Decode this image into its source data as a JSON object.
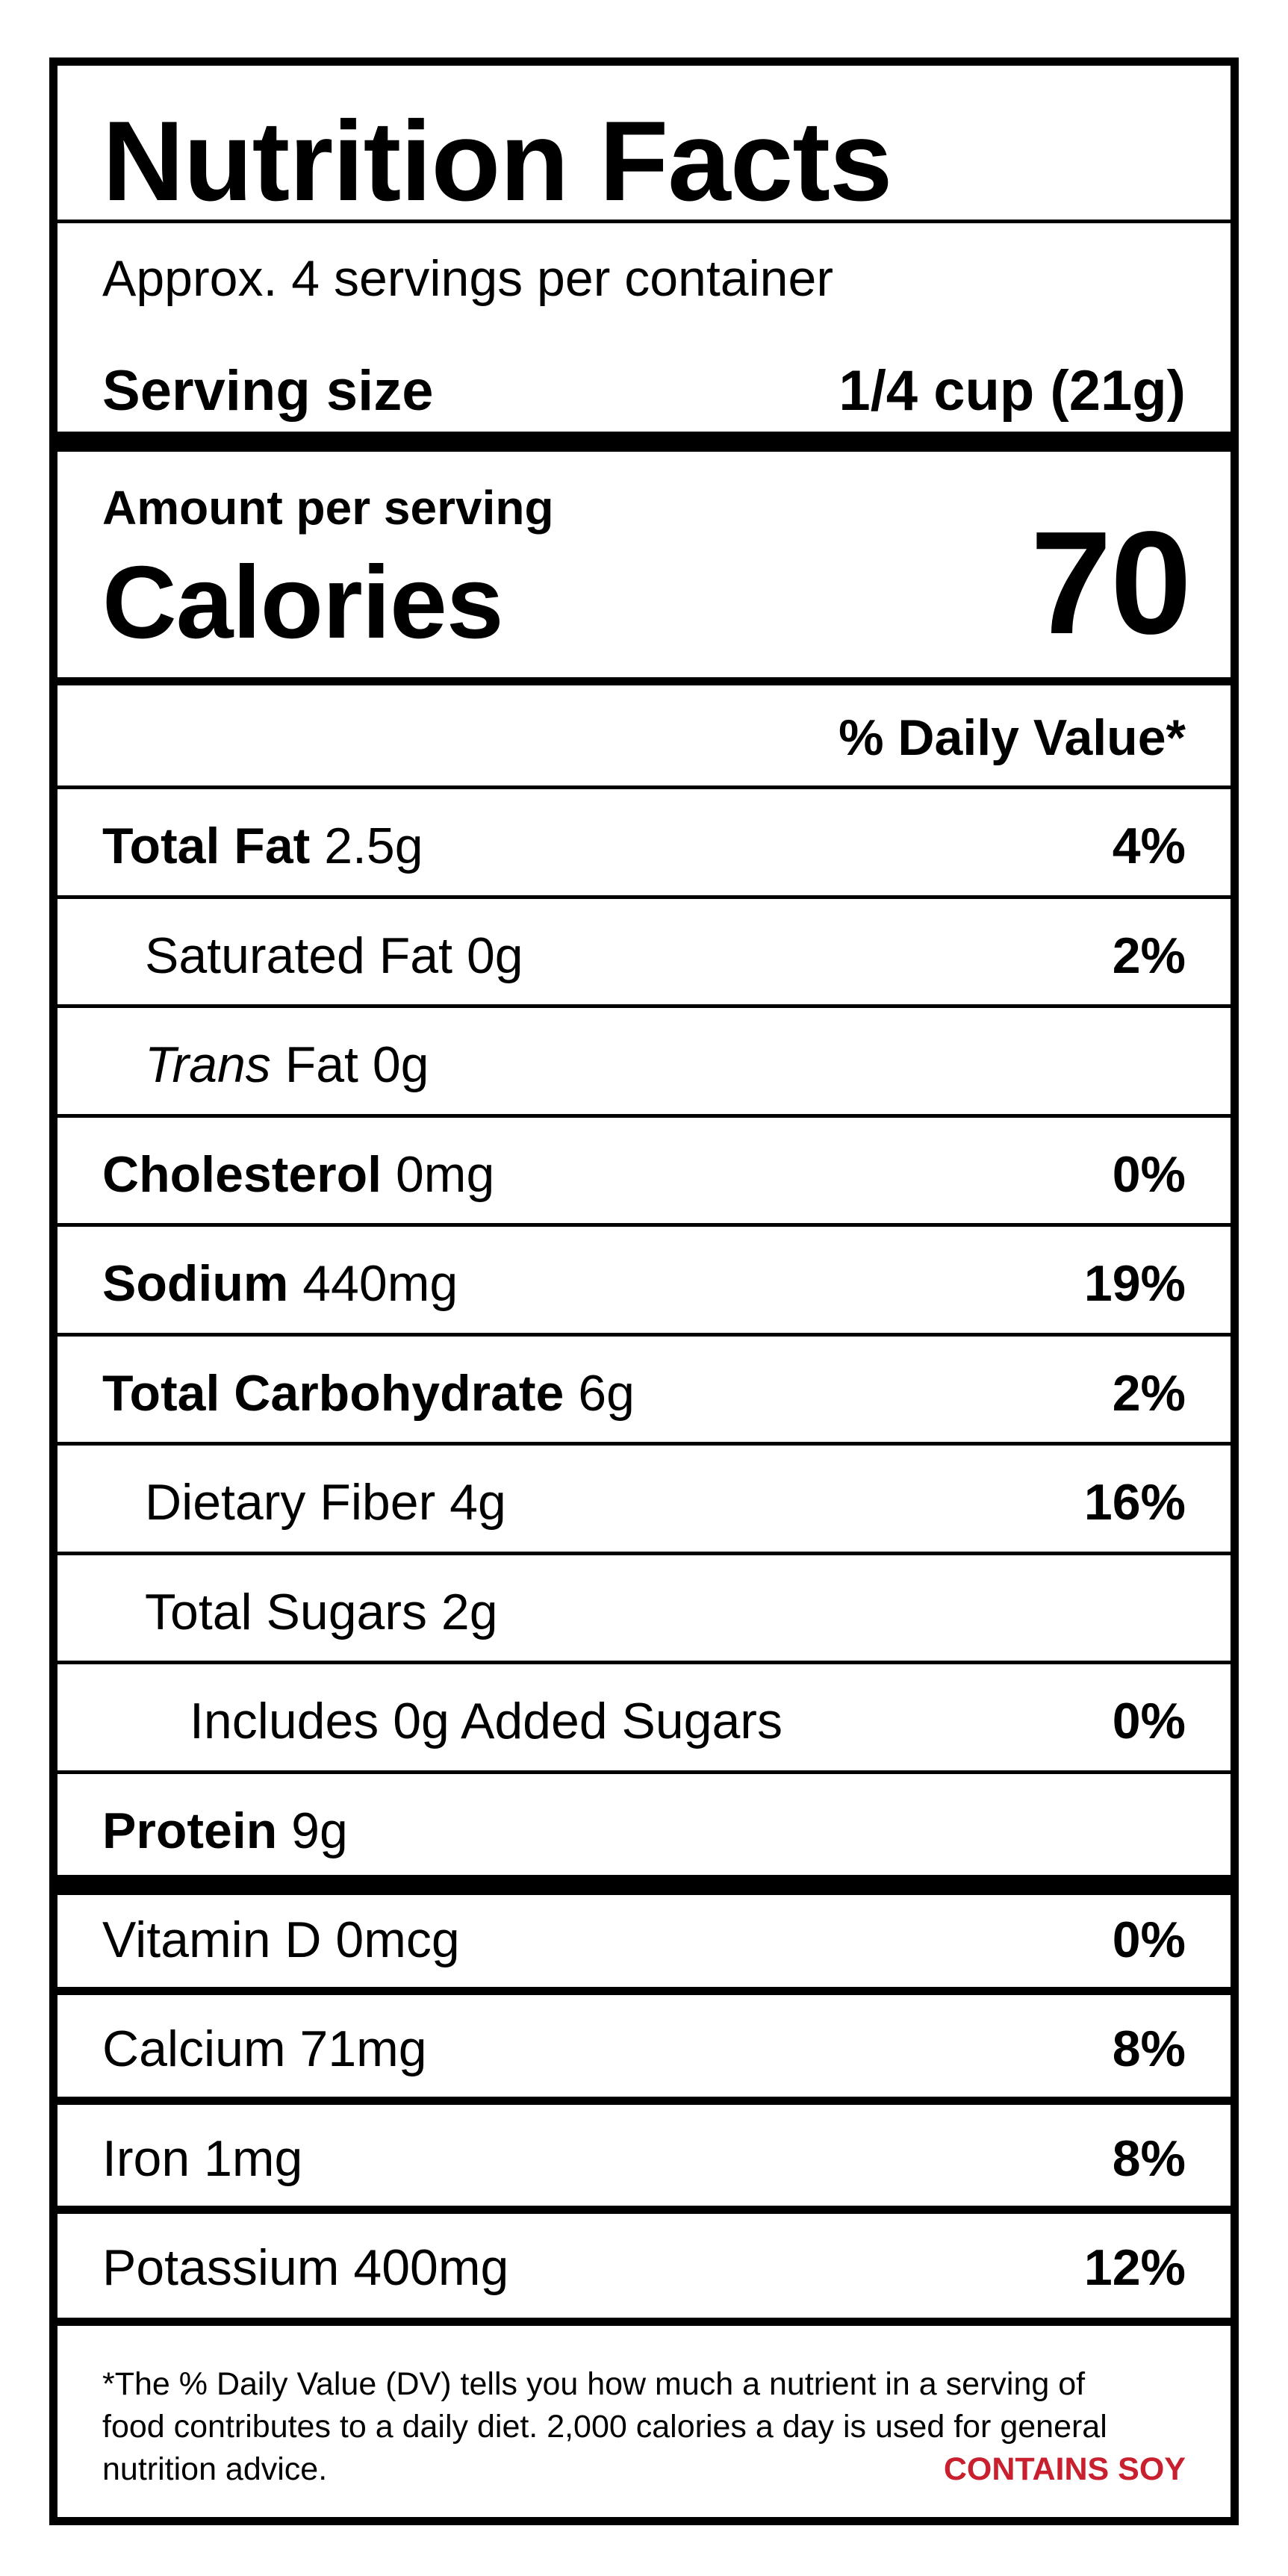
{
  "title": "Nutrition Facts",
  "servings_per_container": "Approx. 4 servings per container",
  "serving_size": {
    "label": "Serving size",
    "value": "1/4 cup (21g)"
  },
  "amount_per_serving": "Amount per serving",
  "calories": {
    "label": "Calories",
    "value": "70"
  },
  "daily_value_header": "% Daily Value*",
  "nutrients": [
    {
      "name": "Total Fat",
      "amount": "2.5g",
      "dv": "4%"
    },
    {
      "name": "Saturated Fat",
      "amount": "0g",
      "dv": "2%"
    },
    {
      "name": "Trans",
      "amount": "Fat 0g",
      "dv": ""
    },
    {
      "name": "Cholesterol",
      "amount": "0mg",
      "dv": "0%"
    },
    {
      "name": "Sodium",
      "amount": "440mg",
      "dv": "19%"
    },
    {
      "name": "Total Carbohydrate",
      "amount": "6g",
      "dv": "2%"
    },
    {
      "name": "Dietary Fiber",
      "amount": "4g",
      "dv": "16%"
    },
    {
      "name": "Total Sugars",
      "amount": "2g",
      "dv": ""
    },
    {
      "name": "Includes",
      "amount": "0g Added Sugars",
      "dv": "0%"
    },
    {
      "name": "Protein",
      "amount": "9g",
      "dv": ""
    }
  ],
  "vitamins": [
    {
      "name": "Vitamin D",
      "amount": "0mcg",
      "dv": "0%"
    },
    {
      "name": "Calcium",
      "amount": "71mg",
      "dv": "8%"
    },
    {
      "name": "Iron",
      "amount": "1mg",
      "dv": "8%"
    },
    {
      "name": "Potassium",
      "amount": "400mg",
      "dv": "12%"
    }
  ],
  "footnote": {
    "line1": "*The % Daily Value (DV) tells you how much a nutrient in a serving of",
    "line2": "food contributes to a daily diet. 2,000 calories a day is used for general",
    "line3": "nutrition advice."
  },
  "allergen": "CONTAINS SOY",
  "colors": {
    "text": "#000000",
    "allergen": "#C8202E",
    "background": "#FFFFFF"
  }
}
